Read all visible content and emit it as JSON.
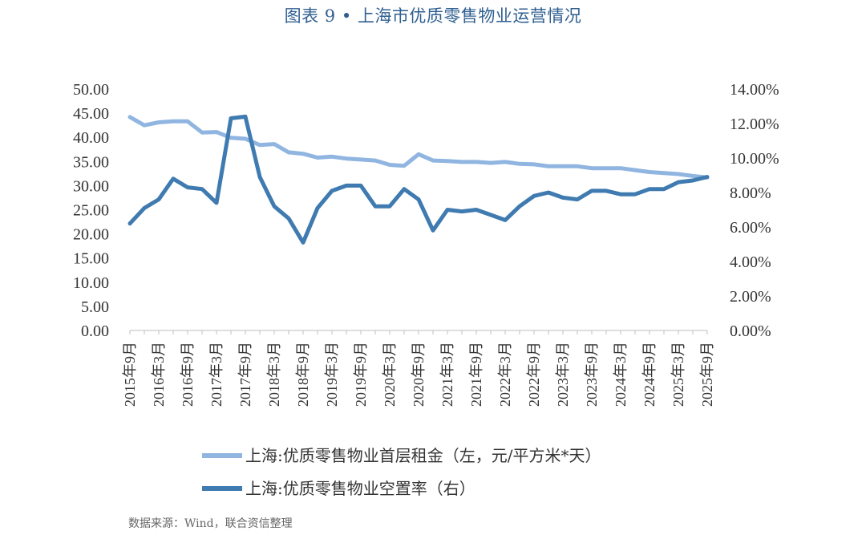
{
  "title": "图表 9 • 上海市优质零售物业运营情况",
  "source": "数据来源：Wind，联合资信整理",
  "colors": {
    "rent": "#8fb5e0",
    "vacancy": "#3f7bb0",
    "axis": "#bfbfbf",
    "title": "#2f5f91"
  },
  "chart_data": {
    "type": "line",
    "title": "图表 9 • 上海市优质零售物业运营情况",
    "left_axis": {
      "ylim": [
        0,
        50
      ],
      "ticks": [
        "50.00",
        "45.00",
        "40.00",
        "35.00",
        "30.00",
        "25.00",
        "20.00",
        "15.00",
        "10.00",
        "5.00",
        "0.00"
      ]
    },
    "right_axis": {
      "ylim": [
        0,
        14
      ],
      "ticks": [
        "14.00%",
        "12.00%",
        "10.00%",
        "8.00%",
        "6.00%",
        "4.00%",
        "2.00%",
        "0.00%"
      ]
    },
    "x_tick_labels": [
      "2015年9月",
      "2016年3月",
      "2016年9月",
      "2017年3月",
      "2017年9月",
      "2018年3月",
      "2018年9月",
      "2019年3月",
      "2019年9月",
      "2020年3月",
      "2020年9月",
      "2021年3月",
      "2021年9月",
      "2022年3月",
      "2022年9月",
      "2023年3月",
      "2023年9月",
      "2024年3月",
      "2024年9月",
      "2025年3月",
      "2025年9月"
    ],
    "legend_position": "bottom",
    "grid": false,
    "series": [
      {
        "name": "上海:优质零售物业首层租金（左，元/平方米*天）",
        "axis": "left",
        "values": [
          44.2,
          42.5,
          43.1,
          43.3,
          43.3,
          41.0,
          41.1,
          39.9,
          39.7,
          38.4,
          38.6,
          36.9,
          36.6,
          35.8,
          36.0,
          35.6,
          35.4,
          35.2,
          34.3,
          34.1,
          36.5,
          35.2,
          35.1,
          34.9,
          34.9,
          34.7,
          34.9,
          34.5,
          34.4,
          34.0,
          34.0,
          34.0,
          33.6,
          33.6,
          33.6,
          33.2,
          32.8,
          32.6,
          32.4,
          32.0,
          31.7
        ]
      },
      {
        "name": "上海:优质零售物业空置率（右）",
        "axis": "right",
        "values": [
          6.2,
          7.1,
          7.6,
          8.8,
          8.3,
          8.2,
          7.4,
          12.3,
          12.4,
          8.9,
          7.2,
          6.5,
          5.1,
          7.1,
          8.1,
          8.4,
          8.4,
          7.2,
          7.2,
          8.2,
          7.6,
          5.8,
          7.0,
          6.9,
          7.0,
          6.7,
          6.4,
          7.2,
          7.8,
          8.0,
          7.7,
          7.6,
          8.1,
          8.1,
          7.9,
          7.9,
          8.2,
          8.2,
          8.6,
          8.7,
          8.9
        ]
      }
    ]
  }
}
